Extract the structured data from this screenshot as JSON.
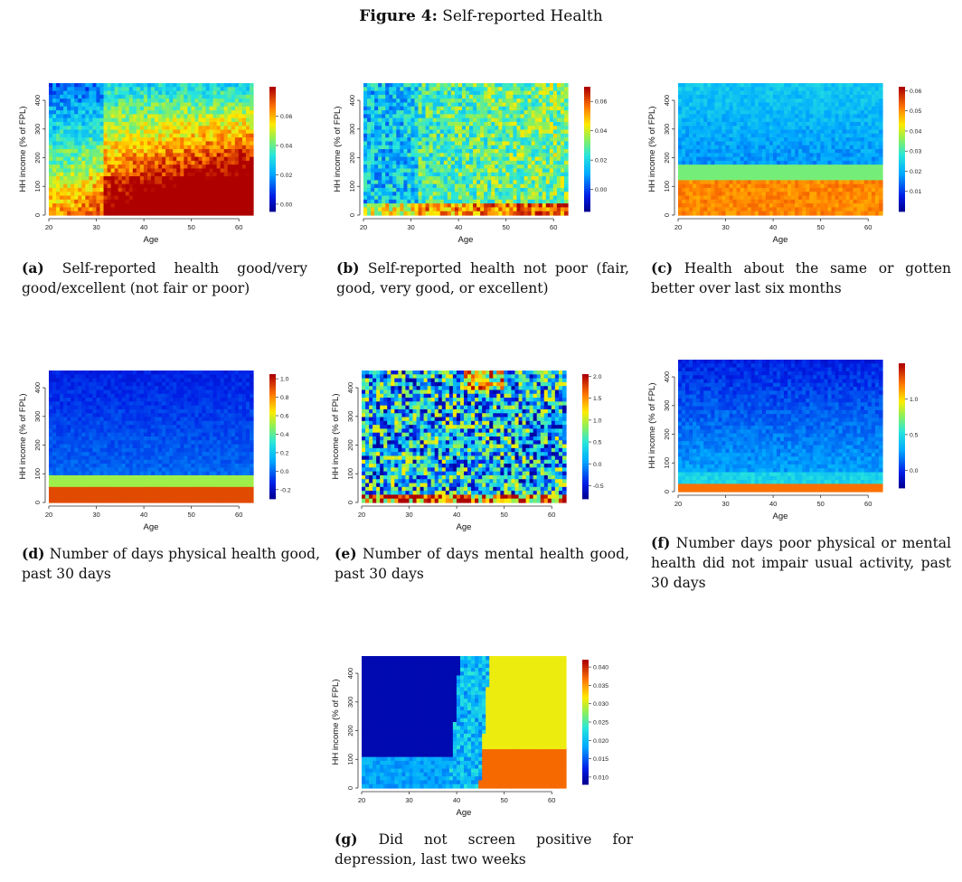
{
  "figure": {
    "label": "Figure 4:",
    "title": "Self-reported Health"
  },
  "panels": [
    {
      "id": "a",
      "label": "(a)",
      "caption": "Self-reported health good/very good/excellent (not fair or poor)",
      "chart_data": {
        "type": "heatmap",
        "xlabel": "Age",
        "ylabel": "HH income (% of FPL)",
        "x_ticks": [
          20,
          30,
          40,
          50,
          60
        ],
        "y_ticks": [
          0,
          100,
          200,
          300,
          400
        ],
        "xlim": [
          20,
          63
        ],
        "ylim": [
          0,
          460
        ],
        "colorbar_ticks": [
          "0.00",
          "0.02",
          "0.04",
          "0.06"
        ],
        "colorbar_range": [
          -0.005,
          0.08
        ],
        "pattern": "low/cool at top-left, rising to high (red) at high age, low income"
      }
    },
    {
      "id": "b",
      "label": "(b)",
      "caption": "Self-reported health not poor (fair, good, very good, or excellent)",
      "chart_data": {
        "type": "heatmap",
        "xlabel": "Age",
        "ylabel": "HH income (% of FPL)",
        "x_ticks": [
          20,
          30,
          40,
          50,
          60
        ],
        "y_ticks": [
          0,
          100,
          200,
          300,
          400
        ],
        "xlim": [
          20,
          63
        ],
        "ylim": [
          0,
          460
        ],
        "colorbar_ticks": [
          "0.00",
          "0.02",
          "0.04",
          "0.06"
        ],
        "colorbar_range": [
          -0.015,
          0.07
        ]
      }
    },
    {
      "id": "c",
      "label": "(c)",
      "caption": "Health about the same or gotten better over last six months",
      "chart_data": {
        "type": "heatmap",
        "xlabel": "Age",
        "ylabel": "HH income (% of FPL)",
        "x_ticks": [
          20,
          30,
          40,
          50,
          60
        ],
        "y_ticks": [
          0,
          100,
          200,
          300,
          400
        ],
        "xlim": [
          20,
          63
        ],
        "ylim": [
          0,
          460
        ],
        "colorbar_ticks": [
          "0.01",
          "0.02",
          "0.03",
          "0.04",
          "0.05",
          "0.06"
        ],
        "colorbar_range": [
          0.0,
          0.062
        ]
      }
    },
    {
      "id": "d",
      "label": "(d)",
      "caption": "Number of days physical health good, past 30 days",
      "chart_data": {
        "type": "heatmap",
        "xlabel": "Age",
        "ylabel": "HH income (% of FPL)",
        "x_ticks": [
          20,
          30,
          40,
          50,
          60
        ],
        "y_ticks": [
          0,
          100,
          200,
          300,
          400
        ],
        "xlim": [
          20,
          63
        ],
        "ylim": [
          0,
          460
        ],
        "colorbar_ticks": [
          "-0.2",
          "0.0",
          "0.2",
          "0.4",
          "0.6",
          "0.8",
          "1.0"
        ],
        "colorbar_range": [
          -0.3,
          1.05
        ]
      }
    },
    {
      "id": "e",
      "label": "(e)",
      "caption": "Number of days mental health good, past 30 days",
      "chart_data": {
        "type": "heatmap",
        "xlabel": "Age",
        "ylabel": "HH income (% of FPL)",
        "x_ticks": [
          20,
          30,
          40,
          50,
          60
        ],
        "y_ticks": [
          0,
          100,
          200,
          300,
          400
        ],
        "xlim": [
          20,
          63
        ],
        "ylim": [
          0,
          460
        ],
        "colorbar_ticks": [
          "-0.5",
          "0.0",
          "0.5",
          "1.0",
          "1.5",
          "2.0"
        ],
        "colorbar_range": [
          -0.8,
          2.05
        ]
      }
    },
    {
      "id": "f",
      "label": "(f)",
      "caption": "Number days poor physical or mental health did not impair usual activity, past 30 days",
      "chart_data": {
        "type": "heatmap",
        "xlabel": "Age",
        "ylabel": "HH income (% of FPL)",
        "x_ticks": [
          20,
          30,
          40,
          50,
          60
        ],
        "y_ticks": [
          0,
          100,
          200,
          300,
          400
        ],
        "xlim": [
          20,
          63
        ],
        "ylim": [
          0,
          460
        ],
        "colorbar_ticks": [
          "0.0",
          "0.5",
          "1.0"
        ],
        "colorbar_range": [
          -0.25,
          1.5
        ]
      }
    },
    {
      "id": "g",
      "label": "(g)",
      "caption": "Did not screen positive for depression, last two weeks",
      "chart_data": {
        "type": "heatmap",
        "xlabel": "Age",
        "ylabel": "HH income (% of FPL)",
        "x_ticks": [
          20,
          30,
          40,
          50,
          60
        ],
        "y_ticks": [
          0,
          100,
          200,
          300,
          400
        ],
        "xlim": [
          20,
          63
        ],
        "ylim": [
          0,
          460
        ],
        "colorbar_ticks": [
          "0.010",
          "0.015",
          "0.020",
          "0.025",
          "0.030",
          "0.035",
          "0.040"
        ],
        "colorbar_range": [
          0.008,
          0.042
        ]
      }
    }
  ]
}
